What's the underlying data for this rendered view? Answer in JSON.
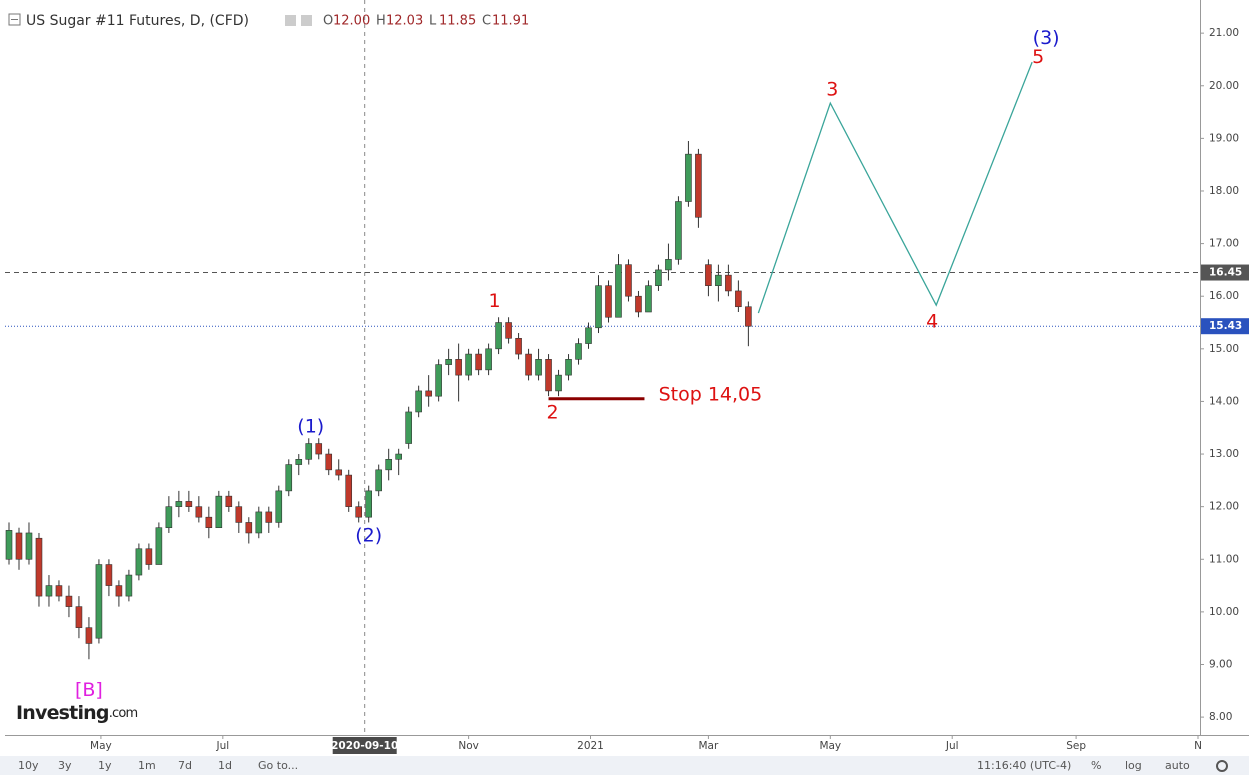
{
  "chart_data": {
    "type": "candlestick",
    "title": "US Sugar #11 Futures, D, (CFD)",
    "ohlc_legend": [
      {
        "key": "O",
        "value": "12.00"
      },
      {
        "key": "H",
        "value": "12.03"
      },
      {
        "key": "L",
        "value": "11.85"
      },
      {
        "key": "C",
        "value": "11.91"
      }
    ],
    "up_color": "#3f9b5a",
    "down_color": "#c0392b",
    "x": [
      "2020-03-16",
      "2020-03-21",
      "2020-03-26",
      "2020-03-31",
      "2020-04-05",
      "2020-04-10",
      "2020-04-15",
      "2020-04-20",
      "2020-04-25",
      "2020-04-30",
      "2020-05-05",
      "2020-05-10",
      "2020-05-15",
      "2020-05-20",
      "2020-05-25",
      "2020-05-30",
      "2020-06-04",
      "2020-06-09",
      "2020-06-14",
      "2020-06-19",
      "2020-06-24",
      "2020-06-29",
      "2020-07-04",
      "2020-07-09",
      "2020-07-14",
      "2020-07-19",
      "2020-07-24",
      "2020-07-29",
      "2020-08-03",
      "2020-08-08",
      "2020-08-13",
      "2020-08-18",
      "2020-08-23",
      "2020-08-28",
      "2020-09-02",
      "2020-09-07",
      "2020-09-12",
      "2020-09-17",
      "2020-09-22",
      "2020-09-27",
      "2020-10-02",
      "2020-10-07",
      "2020-10-12",
      "2020-10-17",
      "2020-10-22",
      "2020-10-27",
      "2020-11-01",
      "2020-11-06",
      "2020-11-11",
      "2020-11-16",
      "2020-11-21",
      "2020-11-26",
      "2020-12-01",
      "2020-12-06",
      "2020-12-11",
      "2020-12-16",
      "2020-12-21",
      "2020-12-26",
      "2020-12-31",
      "2021-01-05",
      "2021-01-10",
      "2021-01-15",
      "2021-01-20",
      "2021-01-25",
      "2021-01-30",
      "2021-02-04",
      "2021-02-09",
      "2021-02-14",
      "2021-02-19",
      "2021-02-24",
      "2021-03-01",
      "2021-03-06",
      "2021-03-11",
      "2021-03-16",
      "2021-03-21"
    ],
    "open": [
      11.0,
      11.5,
      11.0,
      11.4,
      10.3,
      10.5,
      10.3,
      10.1,
      9.7,
      9.5,
      10.9,
      10.5,
      10.3,
      10.7,
      11.2,
      10.9,
      11.6,
      12.0,
      12.1,
      12.0,
      11.8,
      11.6,
      12.2,
      12.0,
      11.7,
      11.5,
      11.9,
      11.7,
      12.3,
      12.8,
      12.9,
      13.2,
      13.0,
      12.7,
      12.6,
      12.0,
      11.8,
      12.3,
      12.7,
      12.9,
      13.2,
      13.8,
      14.2,
      14.1,
      14.7,
      14.8,
      14.5,
      14.9,
      14.6,
      15.0,
      15.5,
      15.2,
      14.9,
      14.5,
      14.8,
      14.2,
      14.5,
      14.8,
      15.1,
      15.4,
      16.2,
      15.6,
      16.6,
      16.0,
      15.7,
      16.2,
      16.5,
      16.7,
      17.8,
      18.7,
      16.6,
      16.2,
      16.4,
      16.1,
      15.8
    ],
    "high": [
      11.7,
      11.6,
      11.7,
      11.5,
      10.7,
      10.6,
      10.5,
      10.3,
      9.9,
      11.0,
      11.0,
      10.6,
      10.8,
      11.3,
      11.3,
      11.7,
      12.2,
      12.3,
      12.3,
      12.2,
      12.0,
      12.3,
      12.3,
      12.1,
      11.8,
      12.0,
      12.0,
      12.4,
      12.9,
      13.0,
      13.3,
      13.3,
      13.1,
      12.9,
      12.7,
      12.1,
      12.4,
      12.8,
      13.1,
      13.1,
      13.9,
      14.3,
      14.5,
      14.8,
      15.0,
      15.1,
      15.0,
      15.0,
      15.1,
      15.6,
      15.6,
      15.3,
      15.0,
      15.0,
      14.9,
      14.6,
      14.9,
      15.2,
      15.5,
      16.4,
      16.3,
      16.8,
      16.7,
      16.1,
      16.3,
      16.6,
      17.0,
      17.9,
      18.95,
      18.8,
      16.7,
      16.6,
      16.6,
      16.3,
      15.9
    ],
    "low": [
      10.9,
      10.8,
      10.9,
      10.1,
      10.1,
      10.2,
      9.9,
      9.5,
      9.1,
      9.4,
      10.3,
      10.1,
      10.2,
      10.6,
      10.8,
      10.9,
      11.5,
      11.8,
      11.9,
      11.7,
      11.4,
      11.6,
      11.9,
      11.5,
      11.3,
      11.4,
      11.5,
      11.6,
      12.2,
      12.6,
      12.8,
      12.9,
      12.6,
      12.5,
      11.9,
      11.7,
      11.7,
      12.2,
      12.5,
      12.6,
      13.1,
      13.7,
      13.9,
      14.0,
      14.5,
      14.0,
      14.4,
      14.5,
      14.5,
      14.9,
      15.1,
      14.8,
      14.4,
      14.4,
      14.1,
      14.1,
      14.4,
      14.7,
      15.0,
      15.3,
      15.5,
      15.6,
      15.9,
      15.6,
      15.7,
      16.1,
      16.3,
      16.6,
      17.7,
      17.3,
      16.0,
      15.9,
      16.0,
      15.7,
      15.05
    ],
    "close": [
      11.55,
      11.0,
      11.5,
      10.3,
      10.5,
      10.3,
      10.1,
      9.7,
      9.4,
      10.9,
      10.5,
      10.3,
      10.7,
      11.2,
      10.9,
      11.6,
      12.0,
      12.1,
      12.0,
      11.8,
      11.6,
      12.2,
      12.0,
      11.7,
      11.5,
      11.9,
      11.7,
      12.3,
      12.8,
      12.9,
      13.2,
      13.0,
      12.7,
      12.6,
      12.0,
      11.8,
      12.3,
      12.7,
      12.9,
      13.0,
      13.8,
      14.2,
      14.1,
      14.7,
      14.8,
      14.5,
      14.9,
      14.6,
      15.0,
      15.5,
      15.2,
      14.9,
      14.5,
      14.8,
      14.2,
      14.5,
      14.8,
      15.1,
      15.4,
      16.2,
      15.6,
      16.6,
      16.0,
      15.7,
      16.2,
      16.5,
      16.7,
      17.8,
      18.7,
      17.5,
      16.2,
      16.4,
      16.1,
      15.8,
      15.43
    ],
    "xlim": [
      "2020-03-14",
      "2021-11-02"
    ],
    "ylim": [
      7.66,
      21.63
    ],
    "yticks": [
      {
        "value": 8,
        "label": "8.00"
      },
      {
        "value": 9,
        "label": "9.00"
      },
      {
        "value": 10,
        "label": "10.00"
      },
      {
        "value": 11,
        "label": "11.00"
      },
      {
        "value": 12,
        "label": "12.00"
      },
      {
        "value": 13,
        "label": "13.00"
      },
      {
        "value": 14,
        "label": "14.00"
      },
      {
        "value": 15,
        "label": "15.00"
      },
      {
        "value": 16,
        "label": "16.00"
      },
      {
        "value": 17,
        "label": "17.00"
      },
      {
        "value": 18,
        "label": "18.00"
      },
      {
        "value": 19,
        "label": "19.00"
      },
      {
        "value": 20,
        "label": "20.00"
      },
      {
        "value": 21,
        "label": "21.00"
      }
    ],
    "xticks": [
      {
        "value": "2020-05-01",
        "label": "May"
      },
      {
        "value": "2020-07-01",
        "label": "Jul"
      },
      {
        "value": "2020-11-01",
        "label": "Nov"
      },
      {
        "value": "2021-01-01",
        "label": "2021"
      },
      {
        "value": "2021-03-01",
        "label": "Mar"
      },
      {
        "value": "2021-05-01",
        "label": "May"
      },
      {
        "value": "2021-07-01",
        "label": "Jul"
      },
      {
        "value": "2021-09-01",
        "label": "Sep"
      },
      {
        "value": "2021-11-01",
        "label": "N"
      }
    ],
    "crosshair_x": "2020-09-10",
    "price_lines": [
      {
        "value": 16.45,
        "color": "#555555"
      },
      {
        "value": 15.43,
        "color": "#2a52be"
      }
    ],
    "projection": {
      "x": [
        "2021-03-26",
        "2021-05-01",
        "2021-06-23",
        "2021-08-10"
      ],
      "values": [
        15.68,
        19.67,
        15.83,
        20.45
      ],
      "color": "#3aa59a"
    },
    "stop_line": {
      "value": 14.05,
      "x": [
        "2020-12-11",
        "2021-01-28"
      ],
      "color": "#8b0000"
    },
    "annotations": [
      {
        "text": "[B]",
        "x": "2020-04-25",
        "y": 8.51,
        "color": "#e020e0"
      },
      {
        "text": "(1)",
        "x": "2020-08-14",
        "y": 13.51,
        "color": "#1a1acc"
      },
      {
        "text": "(2)",
        "x": "2020-09-12",
        "y": 11.44,
        "color": "#1a1acc"
      },
      {
        "text": "1",
        "x": "2020-11-14",
        "y": 15.9,
        "color": "#dd1111"
      },
      {
        "text": "2",
        "x": "2020-12-13",
        "y": 13.78,
        "color": "#dd1111"
      },
      {
        "text": "Stop 14,05",
        "x": "2021-03-02",
        "y": 14.12,
        "color": "#dd1111"
      },
      {
        "text": "3",
        "x": "2021-05-02",
        "y": 19.92,
        "color": "#dd1111"
      },
      {
        "text": "4",
        "x": "2021-06-21",
        "y": 15.51,
        "color": "#dd1111"
      },
      {
        "text": "(3)",
        "x": "2021-08-17",
        "y": 20.9,
        "color": "#1a1acc"
      },
      {
        "text": "5",
        "x": "2021-08-13",
        "y": 20.54,
        "color": "#dd1111"
      }
    ],
    "logo": {
      "brand": "Investing",
      "suffix": ".com"
    }
  },
  "toolbar": {
    "ranges": [
      "10y",
      "3y",
      "1y",
      "1m",
      "7d",
      "1d",
      "Go to..."
    ],
    "time": "11:16:40 (UTC-4)",
    "options": [
      "%",
      "log",
      "auto"
    ]
  }
}
